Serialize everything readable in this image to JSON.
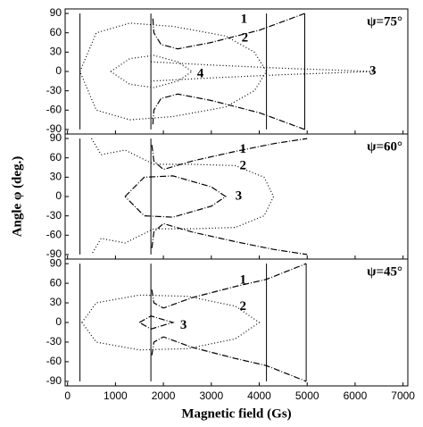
{
  "xlabel": "Magnetic field (Gs)",
  "ylabel": "Angle φ (deg.)",
  "chart_data": [
    {
      "type": "line",
      "title": "ψ=75°",
      "xlim": [
        -50,
        7100
      ],
      "ylim": [
        -97,
        97
      ],
      "xticks": [
        0,
        1000,
        2000,
        3000,
        4000,
        5000,
        6000,
        7000
      ],
      "yticks": [
        -90,
        -60,
        -30,
        0,
        30,
        60,
        90
      ],
      "series": [
        {
          "style": "solid",
          "color": "#000000",
          "x": [
            260,
            260
          ],
          "values": [
            -90,
            90
          ]
        },
        {
          "style": "solid",
          "color": "#000000",
          "x": [
            1740,
            1740
          ],
          "values": [
            -90,
            90
          ]
        },
        {
          "style": "solid",
          "color": "#000000",
          "x": [
            4150,
            4150
          ],
          "values": [
            -90,
            90
          ]
        },
        {
          "style": "solid",
          "color": "#000000",
          "x": [
            4950,
            4950
          ],
          "values": [
            -90,
            90
          ]
        },
        {
          "name": "1",
          "style": "dashdot",
          "color": "#000000",
          "x": [
            1780,
            1800,
            1950,
            2300,
            3000,
            4000,
            4950,
            null,
            1780,
            1800,
            1950,
            2300,
            3000,
            4000,
            4950
          ],
          "values": [
            82,
            60,
            42,
            35,
            45,
            64,
            90,
            null,
            -82,
            -60,
            -42,
            -35,
            -45,
            -64,
            -90
          ]
        },
        {
          "name": "2",
          "style": "dotted",
          "color": "#000000",
          "x": [
            260,
            600,
            1300,
            2200,
            3300,
            3900,
            4150,
            3900,
            3300,
            2200,
            1300,
            600,
            260
          ],
          "values": [
            0,
            60,
            75,
            70,
            55,
            30,
            0,
            -30,
            -55,
            -70,
            -75,
            -60,
            0
          ]
        },
        {
          "name": "3",
          "style": "dotted",
          "color": "#000000",
          "x": [
            1740,
            3000,
            4500,
            6400,
            4500,
            3000,
            1740
          ],
          "values": [
            15,
            10,
            5,
            0,
            -5,
            -10,
            -15
          ]
        },
        {
          "name": "4",
          "style": "dotted",
          "color": "#000000",
          "x": [
            900,
            1300,
            1800,
            2300,
            2600,
            2300,
            1800,
            1300,
            900
          ],
          "values": [
            0,
            20,
            25,
            15,
            0,
            -15,
            -25,
            -20,
            0
          ]
        }
      ]
    },
    {
      "type": "line",
      "title": "ψ=60°",
      "xlim": [
        -50,
        7100
      ],
      "ylim": [
        -97,
        97
      ],
      "xticks": [
        0,
        1000,
        2000,
        3000,
        4000,
        5000,
        6000,
        7000
      ],
      "yticks": [
        -90,
        -60,
        -30,
        0,
        30,
        60,
        90
      ],
      "series": [
        {
          "style": "solid",
          "color": "#000000",
          "x": [
            260,
            260
          ],
          "values": [
            -90,
            90
          ]
        },
        {
          "style": "solid",
          "color": "#000000",
          "x": [
            1740,
            1740
          ],
          "values": [
            -90,
            90
          ]
        },
        {
          "name": "1",
          "style": "dashdot",
          "color": "#000000",
          "x": [
            1760,
            1800,
            2000,
            2600,
            3500,
            4300,
            5000,
            null,
            1760,
            1800,
            2000,
            2600,
            3500,
            4300,
            5000
          ],
          "values": [
            80,
            55,
            42,
            55,
            70,
            82,
            90,
            null,
            -80,
            -55,
            -42,
            -55,
            -70,
            -82,
            -90
          ]
        },
        {
          "name": "2",
          "style": "dotted",
          "color": "#000000",
          "x": [
            500,
            700,
            1200,
            1800,
            2600,
            3500,
            4100,
            4300,
            4100,
            3500,
            2600,
            1800,
            1200,
            700,
            500
          ],
          "values": [
            90,
            65,
            72,
            50,
            50,
            48,
            30,
            0,
            -30,
            -48,
            -50,
            -50,
            -72,
            -65,
            -90
          ]
        },
        {
          "name": "3",
          "style": "dashdot",
          "color": "#000000",
          "x": [
            1200,
            1600,
            2200,
            3000,
            3300,
            3000,
            2200,
            1600,
            1200
          ],
          "values": [
            0,
            30,
            32,
            15,
            0,
            -15,
            -32,
            -30,
            0
          ]
        }
      ]
    },
    {
      "type": "line",
      "title": "ψ=45°",
      "xlim": [
        -50,
        7100
      ],
      "ylim": [
        -97,
        97
      ],
      "xticks": [
        0,
        1000,
        2000,
        3000,
        4000,
        5000,
        6000,
        7000
      ],
      "yticks": [
        -90,
        -60,
        -30,
        0,
        30,
        60,
        90
      ],
      "series": [
        {
          "style": "solid",
          "color": "#000000",
          "x": [
            260,
            260
          ],
          "values": [
            -90,
            90
          ]
        },
        {
          "style": "solid",
          "color": "#000000",
          "x": [
            1740,
            1740
          ],
          "values": [
            -90,
            90
          ]
        },
        {
          "style": "solid",
          "color": "#000000",
          "x": [
            4150,
            4150
          ],
          "values": [
            -90,
            90
          ]
        },
        {
          "style": "solid",
          "color": "#000000",
          "x": [
            4980,
            4980
          ],
          "values": [
            -90,
            90
          ]
        },
        {
          "name": "1",
          "style": "dashdot",
          "color": "#000000",
          "x": [
            1760,
            1800,
            2000,
            2600,
            3500,
            4150,
            4980,
            null,
            1760,
            1800,
            2000,
            2600,
            3500,
            4150,
            4980
          ],
          "values": [
            50,
            30,
            22,
            38,
            55,
            66,
            90,
            null,
            -50,
            -30,
            -22,
            -38,
            -55,
            -66,
            -90
          ]
        },
        {
          "name": "2",
          "style": "dotted",
          "color": "#000000",
          "x": [
            300,
            600,
            1500,
            2500,
            3500,
            4000,
            3500,
            2500,
            1500,
            600,
            300
          ],
          "values": [
            0,
            30,
            42,
            40,
            25,
            0,
            -25,
            -40,
            -42,
            -30,
            0
          ]
        },
        {
          "name": "3",
          "style": "dashdot",
          "color": "#000000",
          "x": [
            1500,
            1740,
            2200,
            1740,
            1500
          ],
          "values": [
            0,
            10,
            0,
            -10,
            0
          ]
        }
      ]
    }
  ]
}
